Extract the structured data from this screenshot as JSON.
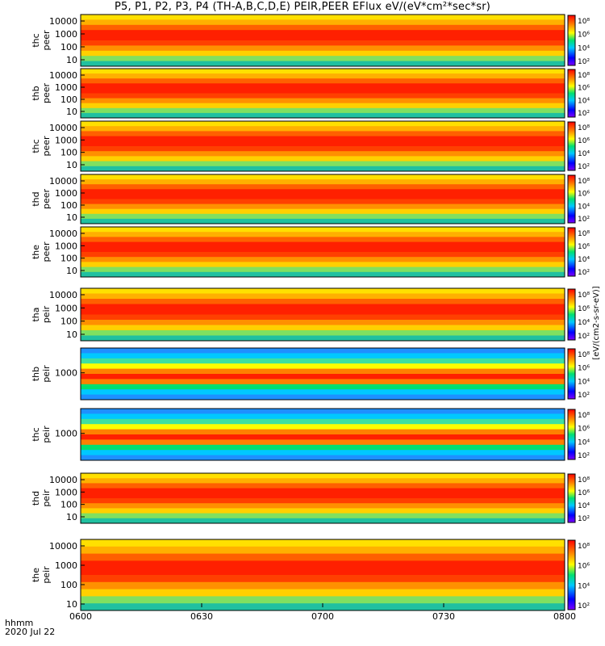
{
  "title": "P5, P1, P2, P3, P4 (TH-A,B,C,D,E) PEIR,PEER EFlux eV/(eV*cm²*sec*sr)",
  "footer": {
    "time_label": "hhmm",
    "date_label": "2020 Jul 22"
  },
  "chart_data": {
    "type": "heatmap",
    "x_ticks": [
      "0600",
      "0630",
      "0700",
      "0730",
      "0800"
    ],
    "x_range": [
      "06:00",
      "08:00"
    ],
    "colorbar_ticks": [
      "10²",
      "10⁴",
      "10⁶",
      "10⁸"
    ],
    "colorbar_label": "[eV/(cm2-s-sr-eV)]",
    "panels": [
      {
        "label": "thc\npeer",
        "ytick_labels": [
          "10000",
          "1000",
          "100",
          "10"
        ]
      },
      {
        "label": "thb\npeer",
        "ytick_labels": [
          "10000",
          "1000",
          "100",
          "10"
        ]
      },
      {
        "label": "thc\npeer",
        "ytick_labels": [
          "10000",
          "1000",
          "100",
          "10"
        ]
      },
      {
        "label": "thd\npeer",
        "ytick_labels": [
          "10000",
          "1000",
          "100",
          "10"
        ]
      },
      {
        "label": "the\npeer",
        "ytick_labels": [
          "10000",
          "1000",
          "100",
          "10"
        ]
      },
      {
        "label": "tha\npeir",
        "ytick_labels": [
          "10000",
          "1000",
          "100",
          "10"
        ]
      },
      {
        "label": "thb\npeir",
        "ytick_labels": [
          "1000"
        ]
      },
      {
        "label": "thc\npeir",
        "ytick_labels": [
          "1000"
        ]
      },
      {
        "label": "thd\npeir",
        "ytick_labels": [
          "10000",
          "1000",
          "100",
          "10"
        ]
      },
      {
        "label": "the\npeir",
        "ytick_labels": [
          "10000",
          "1000",
          "100",
          "10"
        ]
      }
    ]
  }
}
